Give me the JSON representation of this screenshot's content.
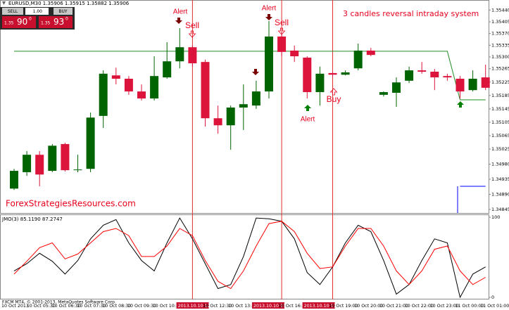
{
  "trade_panel": {
    "sell": "SELL",
    "lot": "1.00",
    "buy": "BUY",
    "bid": {
      "big": "1.35",
      "pips": "90",
      "frac": "0"
    },
    "ask": {
      "big": "1.35",
      "pips": "93",
      "frac": "0"
    }
  },
  "chart_data": [
    {
      "type": "candlestick",
      "title": "3 candles reversal intraday  system",
      "symbol_info": "EURUSD,M30  1.35906 1.35915 1.35882 1.35906",
      "watermark": "ForexStrategiesResources.com",
      "annotations": [
        "Alert",
        "Sell",
        "Alert",
        "Sell",
        "Alert",
        "Buy"
      ],
      "ylim": [
        1.3483,
        1.3547
      ],
      "yticks": [
        {
          "value": 1.3544,
          "label": "1.35440"
        },
        1.35405,
        {
          "value": 1.3537,
          "label": "1.35370"
        },
        1.35335,
        {
          "value": 1.353,
          "label": "1.35300"
        },
        1.35265,
        1.35225,
        1.35185,
        1.35145,
        1.35105,
        1.35065,
        1.35025,
        {
          "value": 1.3498,
          "label": "1.34980"
        },
        1.34935,
        {
          "value": 1.3489,
          "label": "1.34890"
        },
        1.34845
      ],
      "up_color": "#006400",
      "down_color": "#dc143c",
      "open": [
        1.34907,
        1.34956,
        1.35008,
        1.3496,
        1.3504,
        1.34962,
        1.34966,
        1.35124,
        1.35245,
        1.35235,
        1.35197,
        1.35176,
        1.35239,
        1.35287,
        1.35329,
        1.35285,
        1.35117,
        1.35096,
        1.35149,
        1.35155,
        1.35197,
        1.35361,
        1.35319,
        1.35298,
        1.35195,
        1.35252,
        1.35247,
        1.35266,
        1.35319,
        1.35187,
        1.35193,
        1.35229,
        1.3526,
        1.35256,
        1.35243,
        1.35235,
        1.35201,
        1.35239
      ],
      "high": [
        1.34966,
        1.35019,
        1.35019,
        1.3504,
        1.35044,
        1.35008,
        1.35134,
        1.3526,
        1.35268,
        1.35243,
        1.35218,
        1.35302,
        1.35344,
        1.35386,
        1.35334,
        1.35292,
        1.35155,
        1.35155,
        1.35218,
        1.35229,
        1.35407,
        1.35375,
        1.35334,
        1.35302,
        1.35271,
        1.35256,
        1.3526,
        1.3534,
        1.35327,
        1.35197,
        1.35239,
        1.35271,
        1.35285,
        1.35264,
        1.3525,
        1.35243,
        1.3526,
        1.35277
      ],
      "low": [
        1.34903,
        1.34945,
        1.34914,
        1.34956,
        1.34958,
        1.34956,
        1.34956,
        1.35088,
        1.35218,
        1.35187,
        1.3517,
        1.3517,
        1.35235,
        1.35266,
        1.35271,
        1.35092,
        1.35071,
        1.35023,
        1.35082,
        1.35145,
        1.35176,
        1.35302,
        1.35285,
        1.35176,
        1.35155,
        1.35239,
        1.35245,
        1.3526,
        1.35302,
        1.35182,
        1.35151,
        1.35222,
        1.3525,
        1.35201,
        1.35229,
        1.35176,
        1.35197,
        1.35201
      ],
      "close": [
        1.3496,
        1.35008,
        1.34949,
        1.35035,
        1.34962,
        1.34964,
        1.35119,
        1.3525,
        1.35235,
        1.35197,
        1.35176,
        1.35243,
        1.35287,
        1.35329,
        1.35281,
        1.35117,
        1.35096,
        1.35149,
        1.35159,
        1.35197,
        1.35361,
        1.35315,
        1.35302,
        1.35195,
        1.3525,
        1.35247,
        1.35254,
        1.35319,
        1.35306,
        1.35195,
        1.35224,
        1.3526,
        1.35256,
        1.35239,
        1.35239,
        1.35197,
        1.35235,
        1.35208
      ],
      "lines": [
        {
          "color": "#228b22",
          "values": [
            1.35317,
            1.35317,
            1.35317,
            1.35317,
            1.35317,
            1.35317,
            1.35317,
            1.35317,
            1.35317,
            1.35317,
            1.35317,
            1.35317,
            1.35317,
            1.35317,
            1.35317,
            1.35317,
            1.35317,
            1.35317,
            1.35317,
            1.35317,
            1.35317,
            1.35317,
            1.35317,
            1.35317,
            1.35317,
            1.35317,
            1.35317,
            1.35317,
            1.35317,
            1.35317,
            1.35317,
            1.35317,
            1.35317,
            1.35317,
            1.35317,
            1.35172,
            1.35172,
            1.35172
          ]
        },
        {
          "color": "#0000ff",
          "values": [
            null,
            null,
            null,
            null,
            null,
            null,
            null,
            null,
            null,
            null,
            null,
            null,
            null,
            null,
            null,
            null,
            null,
            null,
            null,
            null,
            null,
            null,
            null,
            null,
            null,
            null,
            null,
            null,
            null,
            null,
            null,
            null,
            null,
            null,
            null,
            1.34914,
            1.34914,
            1.34914
          ]
        }
      ]
    },
    {
      "type": "line",
      "label": "JMO(3) 85.1190 87.2747",
      "copyright": "FXCM MT4, © 2001-2013, MetaQuotes Software Corp.",
      "ylim": [
        0,
        100
      ],
      "yticks": [
        100,
        0
      ],
      "series": [
        {
          "color": "#000000",
          "values": [
            33,
            42,
            55,
            45,
            29,
            46,
            73,
            90,
            97,
            68,
            46,
            33,
            68,
            99,
            73,
            42,
            11,
            16,
            51,
            99,
            98,
            95,
            73,
            31,
            16,
            38,
            68,
            90,
            82,
            46,
            4,
            16,
            46,
            73,
            68,
            0,
            29,
            38
          ]
        },
        {
          "color": "#ff0000",
          "values": [
            29,
            45,
            62,
            68,
            48,
            54,
            68,
            82,
            86,
            77,
            51,
            51,
            64,
            86,
            77,
            46,
            20,
            11,
            33,
            64,
            92,
            95,
            82,
            55,
            36,
            38,
            64,
            86,
            86,
            64,
            33,
            16,
            33,
            60,
            64,
            33,
            16,
            25
          ]
        }
      ],
      "time_labels": [
        "10 Oct 2013",
        "10 Oct 05:30",
        "10 Oct 06:30",
        "10 Oct 07:30",
        "10 Oct 08:30",
        "10 Oct 09:30",
        "10 Oct 10:30",
        "2013.10.10 12:00",
        "10 Oct 12:30",
        "10 Oct 13:30",
        "2013.10.10 15:30",
        "10 Oct 16:30",
        "2013.10.10 17:30",
        "10 Oct 19:00",
        "10 Oct 20:00",
        "10 Oct 21:00",
        "10 Oct 22:00",
        "10 Oct 23:00",
        "11 Oct 00:00",
        "11 Oct 01:00"
      ],
      "highlighted_time_labels": [
        7,
        10,
        12
      ]
    }
  ]
}
